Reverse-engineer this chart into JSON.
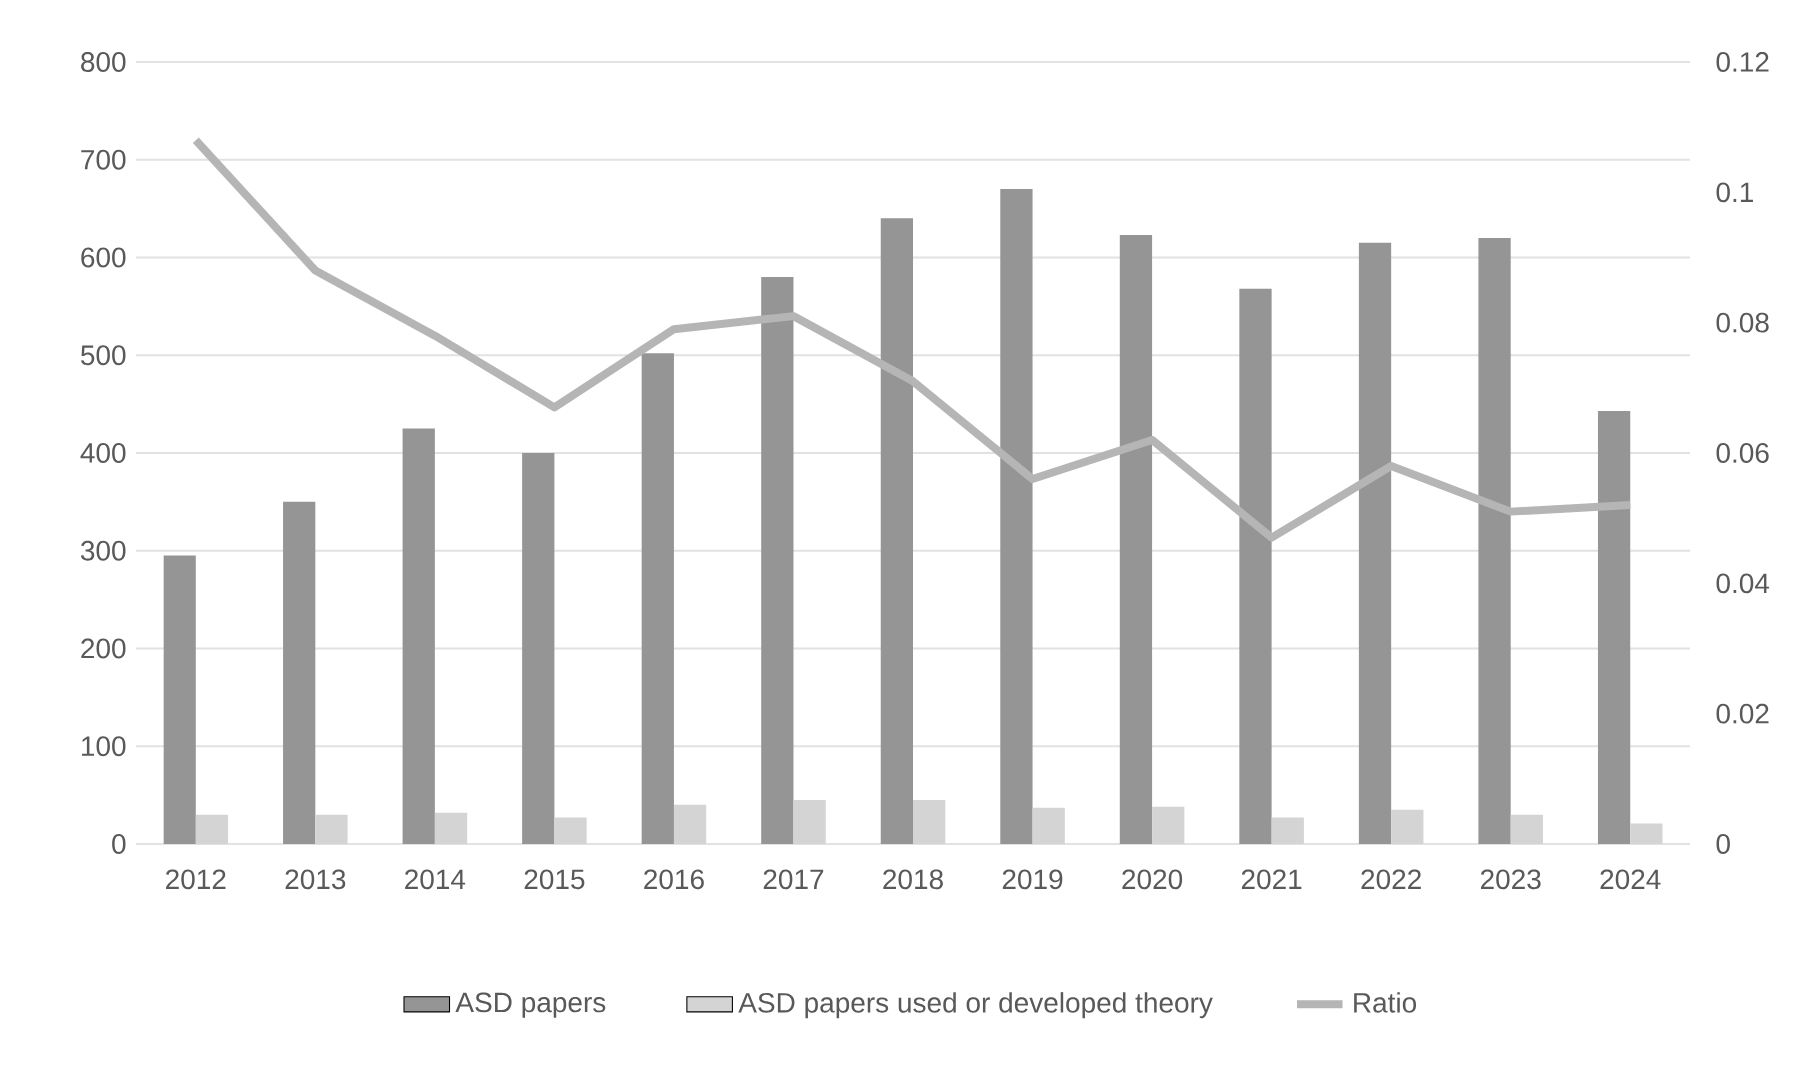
{
  "chart_data": {
    "type": "bar",
    "categories": [
      "2012",
      "2013",
      "2014",
      "2015",
      "2016",
      "2017",
      "2018",
      "2019",
      "2020",
      "2021",
      "2022",
      "2023",
      "2024"
    ],
    "series": [
      {
        "name": "ASD papers",
        "color": "#949594",
        "values": [
          295,
          350,
          425,
          400,
          502,
          580,
          640,
          670,
          623,
          568,
          615,
          620,
          443
        ]
      },
      {
        "name": "ASD  papers used or developed theory",
        "color": "#d3d4d3",
        "values": [
          30,
          30,
          32,
          27,
          40,
          45,
          45,
          37,
          38,
          27,
          35,
          30,
          21
        ]
      },
      {
        "name": "Ratio",
        "type": "line",
        "axis": "y2",
        "color": "#b4b5b4",
        "values": [
          0.108,
          0.088,
          0.078,
          0.067,
          0.079,
          0.081,
          0.071,
          0.056,
          0.062,
          0.047,
          0.058,
          0.051,
          0.052
        ]
      }
    ],
    "ylim": [
      0,
      800
    ],
    "yticks": [
      0,
      100,
      200,
      300,
      400,
      500,
      600,
      700,
      800
    ],
    "y2lim": [
      0,
      0.12
    ],
    "y2ticks": [
      0,
      0.02,
      0.04,
      0.06,
      0.08,
      0.1,
      0.12
    ],
    "grid": "y",
    "legend": "bottom"
  }
}
